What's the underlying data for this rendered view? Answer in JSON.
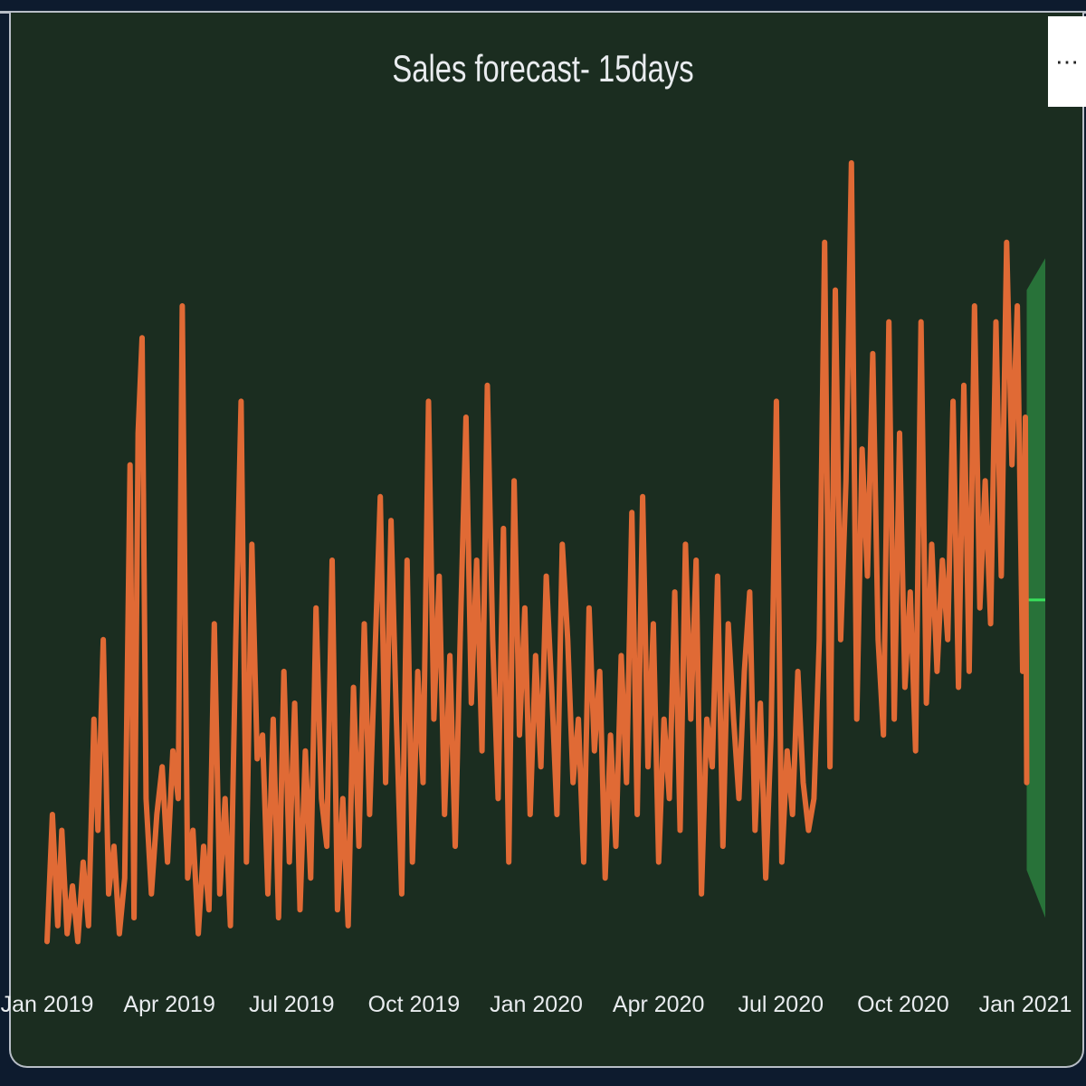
{
  "visual": {
    "title": "Sales forecast- 15days",
    "more_options_glyph": "⋯",
    "more_options_icon": "ellipsis-icon",
    "colors": {
      "background": "#1b2d20",
      "actual_line": "#e06a35",
      "forecast_band": "#2a7a3c",
      "forecast_line": "#39e05c",
      "text": "#e9ecef"
    }
  },
  "chart_data": {
    "type": "line",
    "title": "Sales forecast- 15days",
    "xlabel": "",
    "ylabel": "",
    "x_ticks": [
      "Jan 2019",
      "Apr 2019",
      "Jul 2019",
      "Oct 2019",
      "Jan 2020",
      "Apr 2020",
      "Jul 2020",
      "Oct 2020",
      "Jan 2021"
    ],
    "x_range": [
      "2019-01-01",
      "2021-01-01"
    ],
    "y_range": [
      0,
      100
    ],
    "grid": false,
    "legend": "none",
    "series": [
      {
        "role": "actual",
        "points": [
          [
            "2019-01-01",
            2
          ],
          [
            "2019-01-05",
            18
          ],
          [
            "2019-01-09",
            4
          ],
          [
            "2019-01-12",
            16
          ],
          [
            "2019-01-16",
            3
          ],
          [
            "2019-01-20",
            9
          ],
          [
            "2019-01-24",
            2
          ],
          [
            "2019-01-28",
            12
          ],
          [
            "2019-02-01",
            4
          ],
          [
            "2019-02-05",
            30
          ],
          [
            "2019-02-08",
            16
          ],
          [
            "2019-02-12",
            40
          ],
          [
            "2019-02-16",
            8
          ],
          [
            "2019-02-20",
            14
          ],
          [
            "2019-02-24",
            3
          ],
          [
            "2019-02-28",
            10
          ],
          [
            "2019-03-04",
            62
          ],
          [
            "2019-03-07",
            5
          ],
          [
            "2019-03-10",
            66
          ],
          [
            "2019-03-13",
            78
          ],
          [
            "2019-03-16",
            20
          ],
          [
            "2019-03-20",
            8
          ],
          [
            "2019-03-24",
            18
          ],
          [
            "2019-03-28",
            24
          ],
          [
            "2019-04-01",
            12
          ],
          [
            "2019-04-05",
            26
          ],
          [
            "2019-04-09",
            20
          ],
          [
            "2019-04-12",
            82
          ],
          [
            "2019-04-16",
            10
          ],
          [
            "2019-04-20",
            16
          ],
          [
            "2019-04-24",
            3
          ],
          [
            "2019-04-28",
            14
          ],
          [
            "2019-05-02",
            6
          ],
          [
            "2019-05-06",
            42
          ],
          [
            "2019-05-10",
            8
          ],
          [
            "2019-05-14",
            20
          ],
          [
            "2019-05-18",
            4
          ],
          [
            "2019-05-22",
            40
          ],
          [
            "2019-05-26",
            70
          ],
          [
            "2019-05-30",
            12
          ],
          [
            "2019-06-03",
            52
          ],
          [
            "2019-06-07",
            25
          ],
          [
            "2019-06-11",
            28
          ],
          [
            "2019-06-15",
            8
          ],
          [
            "2019-06-19",
            30
          ],
          [
            "2019-06-23",
            5
          ],
          [
            "2019-06-27",
            36
          ],
          [
            "2019-07-01",
            12
          ],
          [
            "2019-07-05",
            32
          ],
          [
            "2019-07-09",
            6
          ],
          [
            "2019-07-13",
            26
          ],
          [
            "2019-07-17",
            10
          ],
          [
            "2019-07-21",
            44
          ],
          [
            "2019-07-25",
            20
          ],
          [
            "2019-07-29",
            14
          ],
          [
            "2019-08-02",
            50
          ],
          [
            "2019-08-06",
            6
          ],
          [
            "2019-08-10",
            20
          ],
          [
            "2019-08-14",
            4
          ],
          [
            "2019-08-18",
            34
          ],
          [
            "2019-08-22",
            14
          ],
          [
            "2019-08-26",
            42
          ],
          [
            "2019-08-30",
            18
          ],
          [
            "2019-09-03",
            38
          ],
          [
            "2019-09-07",
            58
          ],
          [
            "2019-09-11",
            22
          ],
          [
            "2019-09-15",
            55
          ],
          [
            "2019-09-19",
            30
          ],
          [
            "2019-09-23",
            8
          ],
          [
            "2019-09-27",
            50
          ],
          [
            "2019-10-01",
            12
          ],
          [
            "2019-10-05",
            36
          ],
          [
            "2019-10-09",
            22
          ],
          [
            "2019-10-13",
            70
          ],
          [
            "2019-10-17",
            30
          ],
          [
            "2019-10-21",
            48
          ],
          [
            "2019-10-25",
            18
          ],
          [
            "2019-10-29",
            38
          ],
          [
            "2019-11-02",
            14
          ],
          [
            "2019-11-06",
            42
          ],
          [
            "2019-11-10",
            68
          ],
          [
            "2019-11-14",
            32
          ],
          [
            "2019-11-18",
            50
          ],
          [
            "2019-11-22",
            26
          ],
          [
            "2019-11-26",
            72
          ],
          [
            "2019-11-30",
            40
          ],
          [
            "2019-12-04",
            20
          ],
          [
            "2019-12-08",
            54
          ],
          [
            "2019-12-12",
            12
          ],
          [
            "2019-12-16",
            60
          ],
          [
            "2019-12-20",
            28
          ],
          [
            "2019-12-24",
            44
          ],
          [
            "2019-12-28",
            18
          ],
          [
            "2020-01-01",
            38
          ],
          [
            "2020-01-05",
            24
          ],
          [
            "2020-01-09",
            48
          ],
          [
            "2020-01-13",
            34
          ],
          [
            "2020-01-17",
            18
          ],
          [
            "2020-01-21",
            52
          ],
          [
            "2020-01-25",
            40
          ],
          [
            "2020-01-29",
            22
          ],
          [
            "2020-02-02",
            30
          ],
          [
            "2020-02-06",
            12
          ],
          [
            "2020-02-10",
            44
          ],
          [
            "2020-02-14",
            26
          ],
          [
            "2020-02-18",
            36
          ],
          [
            "2020-02-22",
            10
          ],
          [
            "2020-02-26",
            28
          ],
          [
            "2020-03-01",
            14
          ],
          [
            "2020-03-05",
            38
          ],
          [
            "2020-03-09",
            22
          ],
          [
            "2020-03-13",
            56
          ],
          [
            "2020-03-17",
            18
          ],
          [
            "2020-03-21",
            58
          ],
          [
            "2020-03-25",
            24
          ],
          [
            "2020-03-29",
            42
          ],
          [
            "2020-04-02",
            12
          ],
          [
            "2020-04-06",
            30
          ],
          [
            "2020-04-10",
            20
          ],
          [
            "2020-04-14",
            46
          ],
          [
            "2020-04-18",
            16
          ],
          [
            "2020-04-22",
            52
          ],
          [
            "2020-04-26",
            30
          ],
          [
            "2020-04-30",
            50
          ],
          [
            "2020-05-04",
            8
          ],
          [
            "2020-05-08",
            30
          ],
          [
            "2020-05-12",
            24
          ],
          [
            "2020-05-16",
            48
          ],
          [
            "2020-05-20",
            14
          ],
          [
            "2020-05-24",
            42
          ],
          [
            "2020-05-28",
            30
          ],
          [
            "2020-06-01",
            20
          ],
          [
            "2020-06-05",
            36
          ],
          [
            "2020-06-09",
            46
          ],
          [
            "2020-06-13",
            16
          ],
          [
            "2020-06-17",
            32
          ],
          [
            "2020-06-21",
            10
          ],
          [
            "2020-06-25",
            28
          ],
          [
            "2020-06-29",
            70
          ],
          [
            "2020-07-03",
            12
          ],
          [
            "2020-07-07",
            26
          ],
          [
            "2020-07-11",
            18
          ],
          [
            "2020-07-15",
            36
          ],
          [
            "2020-07-19",
            22
          ],
          [
            "2020-07-23",
            16
          ],
          [
            "2020-07-27",
            20
          ],
          [
            "2020-07-31",
            40
          ],
          [
            "2020-08-04",
            90
          ],
          [
            "2020-08-08",
            24
          ],
          [
            "2020-08-12",
            84
          ],
          [
            "2020-08-16",
            40
          ],
          [
            "2020-08-20",
            60
          ],
          [
            "2020-08-24",
            100
          ],
          [
            "2020-08-28",
            30
          ],
          [
            "2020-09-01",
            64
          ],
          [
            "2020-09-05",
            48
          ],
          [
            "2020-09-09",
            76
          ],
          [
            "2020-09-13",
            40
          ],
          [
            "2020-09-17",
            28
          ],
          [
            "2020-09-21",
            80
          ],
          [
            "2020-09-25",
            30
          ],
          [
            "2020-09-29",
            66
          ],
          [
            "2020-10-03",
            34
          ],
          [
            "2020-10-07",
            46
          ],
          [
            "2020-10-11",
            26
          ],
          [
            "2020-10-15",
            80
          ],
          [
            "2020-10-19",
            32
          ],
          [
            "2020-10-23",
            52
          ],
          [
            "2020-10-27",
            36
          ],
          [
            "2020-10-31",
            50
          ],
          [
            "2020-11-04",
            40
          ],
          [
            "2020-11-08",
            70
          ],
          [
            "2020-11-12",
            34
          ],
          [
            "2020-11-16",
            72
          ],
          [
            "2020-11-20",
            36
          ],
          [
            "2020-11-24",
            82
          ],
          [
            "2020-11-28",
            44
          ],
          [
            "2020-12-02",
            60
          ],
          [
            "2020-12-06",
            42
          ],
          [
            "2020-12-10",
            80
          ],
          [
            "2020-12-14",
            48
          ],
          [
            "2020-12-18",
            90
          ],
          [
            "2020-12-22",
            62
          ],
          [
            "2020-12-26",
            82
          ],
          [
            "2020-12-30",
            36
          ],
          [
            "2021-01-01",
            68
          ],
          [
            "2021-01-02",
            22
          ]
        ]
      },
      {
        "role": "forecast",
        "start": "2021-01-02",
        "end": "2021-01-17",
        "value": 45,
        "lower": 9,
        "upper": 81
      }
    ]
  }
}
